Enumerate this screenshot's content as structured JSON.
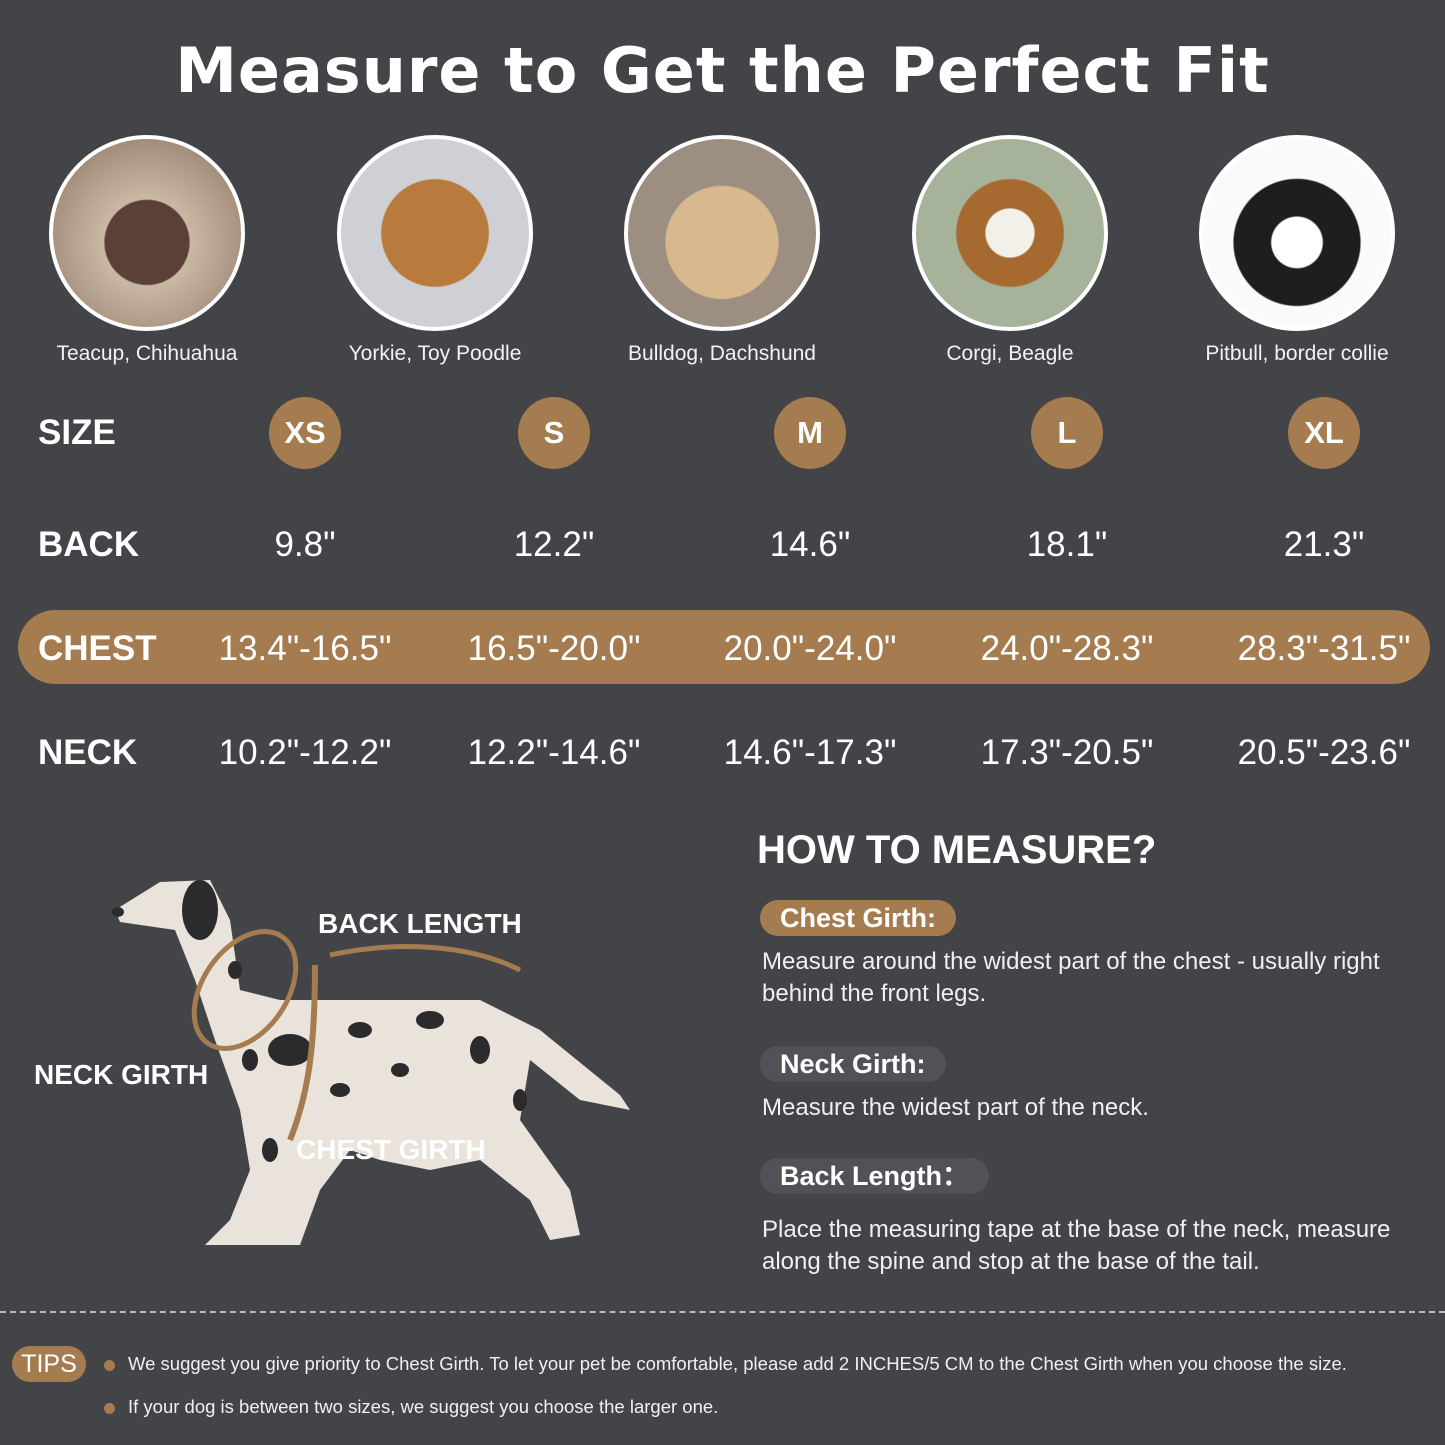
{
  "title": "Measure to Get the Perfect Fit",
  "colors": {
    "background": "#434448",
    "accent": "#a57c4f",
    "pill_grey": "#515257"
  },
  "breeds": [
    "Teacup, Chihuahua",
    "Yorkie, Toy Poodle",
    "Bulldog, Dachshund",
    "Corgi, Beagle",
    "Pitbull, border collie"
  ],
  "table": {
    "size": {
      "label": "SIZE",
      "values": [
        "XS",
        "S",
        "M",
        "L",
        "XL"
      ]
    },
    "back": {
      "label": "BACK",
      "values": [
        "9.8\"",
        "12.2\"",
        "14.6\"",
        "18.1\"",
        "21.3\""
      ]
    },
    "chest": {
      "label": "CHEST",
      "values": [
        "13.4\"-16.5\"",
        "16.5\"-20.0\"",
        "20.0\"-24.0\"",
        "24.0\"-28.3\"",
        "28.3\"-31.5\""
      ]
    },
    "neck": {
      "label": "NECK",
      "values": [
        "10.2\"-12.2\"",
        "12.2\"-14.6\"",
        "14.6\"-17.3\"",
        "17.3\"-20.5\"",
        "20.5\"-23.6\""
      ]
    }
  },
  "diagram": {
    "back_length": "BACK LENGTH",
    "neck_girth": "NECK GIRTH",
    "chest_girth": "CHEST GIRTH"
  },
  "how": {
    "title": "HOW TO MEASURE?",
    "chest": {
      "label": "Chest Girth:",
      "text": "Measure around the widest part of the chest - usually right behind the front legs."
    },
    "neck": {
      "label": "Neck Girth:",
      "text": "Measure the widest part of the neck."
    },
    "back": {
      "label": "Back Length：",
      "text": "Place the measuring tape at the base of the neck, measure along the spine and stop at the base of the tail."
    }
  },
  "tips": {
    "label": "TIPS",
    "items": [
      "We suggest you give priority to Chest Girth. To let your pet be comfortable, please add 2 INCHES/5 CM to the Chest Girth when you choose the size.",
      "If your dog is between two sizes, we suggest you choose the larger one."
    ]
  }
}
